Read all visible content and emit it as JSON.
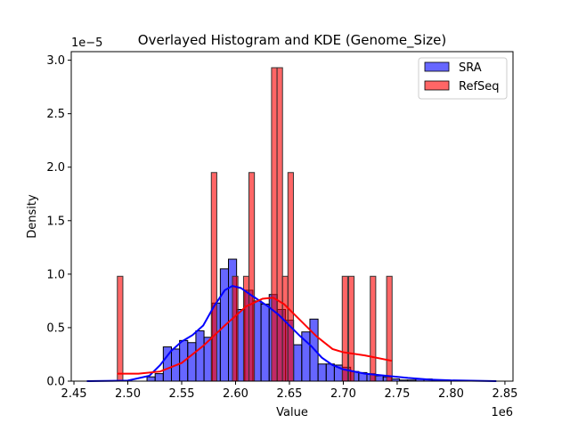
{
  "chart_data": {
    "type": "bar",
    "title": "Overlayed Histogram and KDE (Genome_Size)",
    "xlabel": "Value",
    "ylabel": "Density",
    "x_offset_label": "1e6",
    "y_offset_label": "1e−5",
    "xlim": [
      2.4475,
      2.8575
    ],
    "ylim": [
      0,
      3.08
    ],
    "xticks": [
      "2.45",
      "2.50",
      "2.55",
      "2.60",
      "2.65",
      "2.70",
      "2.75",
      "2.80",
      "2.85"
    ],
    "xtick_values": [
      2.45,
      2.5,
      2.55,
      2.6,
      2.65,
      2.7,
      2.75,
      2.8,
      2.85
    ],
    "yticks": [
      "0.0",
      "0.5",
      "1.0",
      "1.5",
      "2.0",
      "2.5",
      "3.0"
    ],
    "ytick_values": [
      0,
      0.5,
      1.0,
      1.5,
      2.0,
      2.5,
      3.0
    ],
    "grid": false,
    "legend_position": "top-right",
    "series": [
      {
        "name": "SRA",
        "color": "#0000ff",
        "bin_start": 2.5178,
        "bin_width": 0.00756,
        "values": [
          0.04,
          0.07,
          0.32,
          0.3,
          0.38,
          0.36,
          0.47,
          0.41,
          0.73,
          1.05,
          1.14,
          0.67,
          0.85,
          0.75,
          0.72,
          0.81,
          0.67,
          0.57,
          0.34,
          0.46,
          0.58,
          0.16,
          0.16,
          0.15,
          0.13,
          0.09,
          0.08,
          0.07,
          0.05,
          0.04,
          0.02,
          0.01,
          0.01,
          0.02,
          0.02,
          0.01
        ],
        "kde": [
          [
            2.462,
            0
          ],
          [
            2.5,
            0.005
          ],
          [
            2.52,
            0.05
          ],
          [
            2.53,
            0.15
          ],
          [
            2.54,
            0.28
          ],
          [
            2.55,
            0.37
          ],
          [
            2.56,
            0.43
          ],
          [
            2.57,
            0.52
          ],
          [
            2.58,
            0.7
          ],
          [
            2.59,
            0.85
          ],
          [
            2.597,
            0.89
          ],
          [
            2.605,
            0.87
          ],
          [
            2.615,
            0.8
          ],
          [
            2.63,
            0.7
          ],
          [
            2.64,
            0.62
          ],
          [
            2.65,
            0.52
          ],
          [
            2.66,
            0.42
          ],
          [
            2.67,
            0.33
          ],
          [
            2.68,
            0.22
          ],
          [
            2.69,
            0.15
          ],
          [
            2.7,
            0.11
          ],
          [
            2.72,
            0.07
          ],
          [
            2.74,
            0.05
          ],
          [
            2.76,
            0.03
          ],
          [
            2.78,
            0.015
          ],
          [
            2.8,
            0.007
          ],
          [
            2.842,
            0.0
          ]
        ]
      },
      {
        "name": "RefSeq",
        "color": "#ff0000",
        "bin_width": 0.0051,
        "bars": [
          [
            2.4903,
            0.98
          ],
          [
            2.5775,
            1.95
          ],
          [
            2.5971,
            0.98
          ],
          [
            2.6074,
            0.98
          ],
          [
            2.6124,
            1.95
          ],
          [
            2.6334,
            2.93
          ],
          [
            2.6385,
            2.93
          ],
          [
            2.6435,
            0.98
          ],
          [
            2.6486,
            1.95
          ],
          [
            2.699,
            0.98
          ],
          [
            2.7049,
            0.98
          ],
          [
            2.725,
            0.98
          ],
          [
            2.7402,
            0.98
          ]
        ],
        "kde": [
          [
            2.49,
            0.07
          ],
          [
            2.51,
            0.07
          ],
          [
            2.53,
            0.09
          ],
          [
            2.55,
            0.17
          ],
          [
            2.57,
            0.33
          ],
          [
            2.59,
            0.52
          ],
          [
            2.61,
            0.7
          ],
          [
            2.625,
            0.77
          ],
          [
            2.635,
            0.78
          ],
          [
            2.645,
            0.72
          ],
          [
            2.66,
            0.57
          ],
          [
            2.675,
            0.42
          ],
          [
            2.69,
            0.3
          ],
          [
            2.7,
            0.27
          ],
          [
            2.72,
            0.24
          ],
          [
            2.745,
            0.19
          ]
        ]
      }
    ]
  }
}
